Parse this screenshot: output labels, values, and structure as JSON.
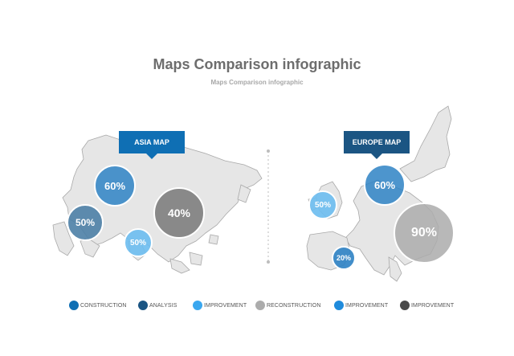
{
  "header": {
    "title": "Maps Comparison infographic",
    "subtitle": "Maps Comparison infographic"
  },
  "maps": [
    {
      "id": "asia",
      "tag_label": "ASIA MAP",
      "tag_color": "#0f6fb4",
      "bubbles": [
        {
          "value": "60%",
          "color": "#2e82c4"
        },
        {
          "value": "50%",
          "color": "#4d7fa6"
        },
        {
          "value": "40%",
          "color": "#8a8a8a"
        },
        {
          "value": "50%",
          "color": "#6cbcf0"
        }
      ]
    },
    {
      "id": "europe",
      "tag_label": "EUROPE MAP",
      "tag_color": "#1b5583",
      "bubbles": [
        {
          "value": "60%",
          "color": "#2e82c4"
        },
        {
          "value": "50%",
          "color": "#6cbcf0"
        },
        {
          "value": "90%",
          "color": "#acacac"
        },
        {
          "value": "20%",
          "color": "#2e82c4"
        }
      ]
    }
  ],
  "legend": [
    {
      "label": "CONSTRUCTION",
      "color": "#0f6fb4"
    },
    {
      "label": "ANALYSIS",
      "color": "#1b5583"
    },
    {
      "label": "IMPROVEMENT",
      "color": "#3aa7ef"
    },
    {
      "label": "RECONSTRUCTION",
      "color": "#acacac"
    },
    {
      "label": "IMPROVEMENT",
      "color": "#1f8bdc"
    },
    {
      "label": "IMPROVEMENT",
      "color": "#4a4a4a"
    }
  ]
}
